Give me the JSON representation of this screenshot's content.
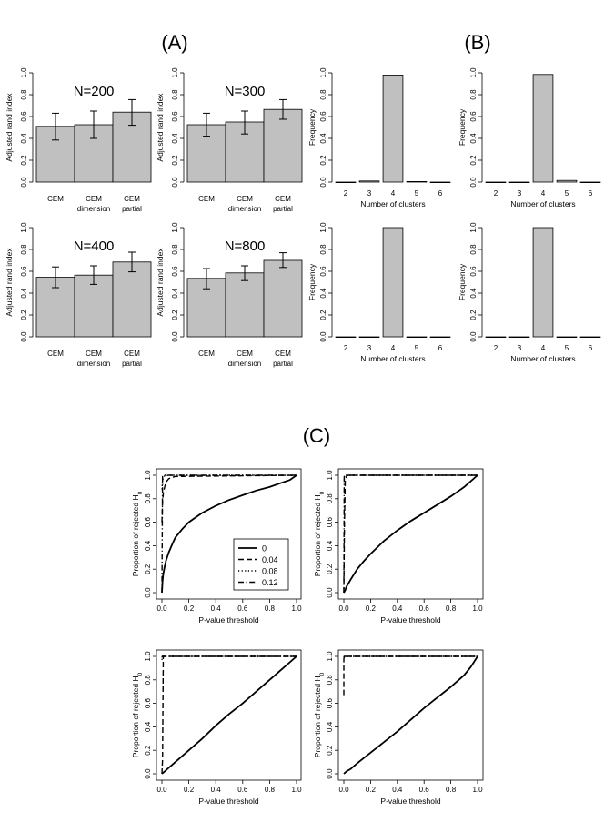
{
  "panel_labels": {
    "a": "(A)",
    "b": "(B)",
    "c": "(C)"
  },
  "chart_data": [
    {
      "id": "A1",
      "type": "bar",
      "title": "N=200",
      "categories": [
        [
          "CEM"
        ],
        [
          "CEM",
          "dimension"
        ],
        [
          "CEM",
          "partial"
        ]
      ],
      "values": [
        0.51,
        0.525,
        0.64
      ],
      "error_low": [
        0.385,
        0.4,
        0.52
      ],
      "error_high": [
        0.63,
        0.65,
        0.755
      ],
      "ylabel": "Adjusted rand index",
      "ylim": [
        0,
        1
      ],
      "yticks": [
        "0.0",
        "0.2",
        "0.4",
        "0.6",
        "0.8",
        "1.0"
      ]
    },
    {
      "id": "A2",
      "type": "bar",
      "title": "N=300",
      "categories": [
        [
          "CEM"
        ],
        [
          "CEM",
          "dimension"
        ],
        [
          "CEM",
          "partial"
        ]
      ],
      "values": [
        0.525,
        0.55,
        0.665
      ],
      "error_low": [
        0.42,
        0.44,
        0.575
      ],
      "error_high": [
        0.63,
        0.65,
        0.755
      ],
      "ylabel": "Adjusted rand index",
      "ylim": [
        0,
        1
      ],
      "yticks": [
        "0.0",
        "0.2",
        "0.4",
        "0.6",
        "0.8",
        "1.0"
      ]
    },
    {
      "id": "A3",
      "type": "bar",
      "title": "N=400",
      "categories": [
        [
          "CEM"
        ],
        [
          "CEM",
          "dimension"
        ],
        [
          "CEM",
          "partial"
        ]
      ],
      "values": [
        0.545,
        0.565,
        0.685
      ],
      "error_low": [
        0.45,
        0.48,
        0.595
      ],
      "error_high": [
        0.64,
        0.65,
        0.775
      ],
      "ylabel": "Adjusted rand index",
      "ylim": [
        0,
        1
      ],
      "yticks": [
        "0.0",
        "0.2",
        "0.4",
        "0.6",
        "0.8",
        "1.0"
      ]
    },
    {
      "id": "A4",
      "type": "bar",
      "title": "N=800",
      "categories": [
        [
          "CEM"
        ],
        [
          "CEM",
          "dimension"
        ],
        [
          "CEM",
          "partial"
        ]
      ],
      "values": [
        0.535,
        0.585,
        0.7
      ],
      "error_low": [
        0.44,
        0.515,
        0.635
      ],
      "error_high": [
        0.625,
        0.65,
        0.77
      ],
      "ylabel": "Adjusted rand index",
      "ylim": [
        0,
        1
      ],
      "yticks": [
        "0.0",
        "0.2",
        "0.4",
        "0.6",
        "0.8",
        "1.0"
      ]
    },
    {
      "id": "B1",
      "type": "bar",
      "categories": [
        "2",
        "3",
        "4",
        "5",
        "6"
      ],
      "values": [
        0.0,
        0.01,
        0.98,
        0.005,
        0.0
      ],
      "ylabel": "Frequency",
      "xlabel": "Number of clusters",
      "ylim": [
        0,
        1
      ],
      "yticks": [
        "0.0",
        "0.2",
        "0.4",
        "0.6",
        "0.8",
        "1.0"
      ]
    },
    {
      "id": "B2",
      "type": "bar",
      "categories": [
        "2",
        "3",
        "4",
        "5",
        "6"
      ],
      "values": [
        0.0,
        0.0,
        0.985,
        0.015,
        0.0
      ],
      "ylabel": "Frequency",
      "xlabel": "Number of clusters",
      "ylim": [
        0,
        1
      ],
      "yticks": [
        "0.0",
        "0.2",
        "0.4",
        "0.6",
        "0.8",
        "1.0"
      ]
    },
    {
      "id": "B3",
      "type": "bar",
      "categories": [
        "2",
        "3",
        "4",
        "5",
        "6"
      ],
      "values": [
        0.0,
        0.0,
        1.0,
        0.0,
        0.0
      ],
      "ylabel": "Frequency",
      "xlabel": "Number of clusters",
      "ylim": [
        0,
        1
      ],
      "yticks": [
        "0.0",
        "0.2",
        "0.4",
        "0.6",
        "0.8",
        "1.0"
      ]
    },
    {
      "id": "B4",
      "type": "bar",
      "categories": [
        "2",
        "3",
        "4",
        "5",
        "6"
      ],
      "values": [
        0.0,
        0.0,
        1.0,
        0.0,
        0.0
      ],
      "ylabel": "Frequency",
      "xlabel": "Number of clusters",
      "ylim": [
        0,
        1
      ],
      "yticks": [
        "0.0",
        "0.2",
        "0.4",
        "0.6",
        "0.8",
        "1.0"
      ]
    },
    {
      "id": "C1",
      "type": "line",
      "xlabel": "P-value threshold",
      "ylabel": "Proportion of rejected H",
      "ylabel_subscript": "0",
      "xlim": [
        0,
        1
      ],
      "ylim": [
        0,
        1
      ],
      "xticks": [
        "0.0",
        "0.2",
        "0.4",
        "0.6",
        "0.8",
        "1.0"
      ],
      "yticks": [
        "0.0",
        "0.2",
        "0.4",
        "0.6",
        "0.8",
        "1.0"
      ],
      "legend": [
        "0",
        "0.04",
        "0.08",
        "0.12"
      ],
      "series": [
        {
          "name": "0",
          "style": "solid",
          "x": [
            0,
            0.005,
            0.01,
            0.02,
            0.03,
            0.05,
            0.08,
            0.1,
            0.15,
            0.2,
            0.25,
            0.3,
            0.4,
            0.5,
            0.6,
            0.7,
            0.8,
            0.9,
            0.95,
            1.0
          ],
          "y": [
            0.0,
            0.1,
            0.16,
            0.22,
            0.27,
            0.34,
            0.42,
            0.47,
            0.54,
            0.6,
            0.64,
            0.68,
            0.74,
            0.79,
            0.83,
            0.87,
            0.9,
            0.94,
            0.96,
            1.0
          ]
        },
        {
          "name": "0.04",
          "style": "dashed",
          "x": [
            0,
            0.005,
            0.01,
            0.02,
            0.03,
            0.05,
            0.07,
            0.1,
            1.0
          ],
          "y": [
            0.6,
            0.78,
            0.84,
            0.9,
            0.94,
            0.97,
            0.98,
            0.99,
            1.0
          ]
        },
        {
          "name": "0.08",
          "style": "dotted",
          "x": [
            0,
            0.005,
            0.01,
            0.02,
            0.05,
            1.0
          ],
          "y": [
            0.88,
            0.95,
            0.98,
            0.995,
            1.0,
            1.0
          ]
        },
        {
          "name": "0.12",
          "style": "dashdot",
          "x": [
            0,
            0.005,
            0.01,
            1.0
          ],
          "y": [
            0.0,
            0.99,
            1.0,
            1.0
          ]
        }
      ]
    },
    {
      "id": "C2",
      "type": "line",
      "xlabel": "P-value threshold",
      "ylabel": "Proportion of rejected H",
      "ylabel_subscript": "0",
      "xlim": [
        0,
        1
      ],
      "ylim": [
        0,
        1
      ],
      "xticks": [
        "0.0",
        "0.2",
        "0.4",
        "0.6",
        "0.8",
        "1.0"
      ],
      "yticks": [
        "0.0",
        "0.2",
        "0.4",
        "0.6",
        "0.8",
        "1.0"
      ],
      "series": [
        {
          "name": "0",
          "style": "solid",
          "x": [
            0,
            0.01,
            0.02,
            0.05,
            0.1,
            0.15,
            0.2,
            0.3,
            0.4,
            0.5,
            0.6,
            0.7,
            0.8,
            0.9,
            1.0
          ],
          "y": [
            0.0,
            0.02,
            0.05,
            0.11,
            0.2,
            0.27,
            0.33,
            0.44,
            0.53,
            0.61,
            0.68,
            0.75,
            0.82,
            0.9,
            1.0
          ]
        },
        {
          "name": "0.04",
          "style": "dashed",
          "x": [
            0,
            0.005,
            0.01,
            0.02,
            0.03,
            1.0
          ],
          "y": [
            0.0,
            0.6,
            0.95,
            0.99,
            1.0,
            1.0
          ]
        },
        {
          "name": "0.08",
          "style": "dotted",
          "x": [
            0,
            0.005,
            0.01,
            1.0
          ],
          "y": [
            0.93,
            0.99,
            1.0,
            1.0
          ]
        },
        {
          "name": "0.12",
          "style": "dashdot",
          "x": [
            0,
            0.003,
            0.005,
            1.0
          ],
          "y": [
            0.0,
            0.99,
            1.0,
            1.0
          ]
        }
      ]
    },
    {
      "id": "C3",
      "type": "line",
      "xlabel": "P-value threshold",
      "ylabel": "Proportion of rejected H",
      "ylabel_subscript": "0",
      "xlim": [
        0,
        1
      ],
      "ylim": [
        0,
        1
      ],
      "xticks": [
        "0.0",
        "0.2",
        "0.4",
        "0.6",
        "0.8",
        "1.0"
      ],
      "yticks": [
        "0.0",
        "0.2",
        "0.4",
        "0.6",
        "0.8",
        "1.0"
      ],
      "series": [
        {
          "name": "0",
          "style": "solid",
          "x": [
            0,
            0.02,
            0.05,
            0.1,
            0.2,
            0.3,
            0.4,
            0.5,
            0.6,
            0.7,
            0.8,
            0.9,
            1.0
          ],
          "y": [
            0.0,
            0.02,
            0.05,
            0.1,
            0.2,
            0.3,
            0.41,
            0.51,
            0.6,
            0.7,
            0.8,
            0.9,
            1.0
          ]
        },
        {
          "name": "0.04",
          "style": "dashed",
          "x": [
            0,
            0.005,
            0.01,
            1.0
          ],
          "y": [
            0.0,
            0.12,
            1.0,
            1.0
          ]
        },
        {
          "name": "0.08",
          "style": "dotted",
          "x": [
            0,
            0.005,
            1.0
          ],
          "y": [
            0.97,
            1.0,
            1.0
          ]
        },
        {
          "name": "0.12",
          "style": "dashdot",
          "x": [
            0,
            0.003,
            1.0
          ],
          "y": [
            0.99,
            1.0,
            1.0
          ]
        }
      ]
    },
    {
      "id": "C4",
      "type": "line",
      "xlabel": "P-value threshold",
      "ylabel": "Proportion of rejected H",
      "ylabel_subscript": "0",
      "xlim": [
        0,
        1
      ],
      "ylim": [
        0,
        1
      ],
      "xticks": [
        "0.0",
        "0.2",
        "0.4",
        "0.6",
        "0.8",
        "1.0"
      ],
      "yticks": [
        "0.0",
        "0.2",
        "0.4",
        "0.6",
        "0.8",
        "1.0"
      ],
      "series": [
        {
          "name": "0",
          "style": "solid",
          "x": [
            0,
            0.02,
            0.05,
            0.1,
            0.2,
            0.3,
            0.4,
            0.5,
            0.6,
            0.7,
            0.8,
            0.9,
            0.95,
            1.0
          ],
          "y": [
            0.0,
            0.02,
            0.04,
            0.09,
            0.18,
            0.27,
            0.36,
            0.46,
            0.56,
            0.65,
            0.74,
            0.84,
            0.91,
            1.0
          ]
        },
        {
          "name": "0.04",
          "style": "dashed",
          "x": [
            0,
            0,
            0.005,
            1.0
          ],
          "y": [
            0.67,
            0.98,
            1.0,
            1.0
          ]
        },
        {
          "name": "0.08",
          "style": "dotted",
          "x": [
            0,
            0.005,
            1.0
          ],
          "y": [
            0.99,
            1.0,
            1.0
          ]
        },
        {
          "name": "0.12",
          "style": "dashdot",
          "x": [
            0,
            0.003,
            1.0
          ],
          "y": [
            0.99,
            1.0,
            1.0
          ]
        }
      ]
    }
  ]
}
